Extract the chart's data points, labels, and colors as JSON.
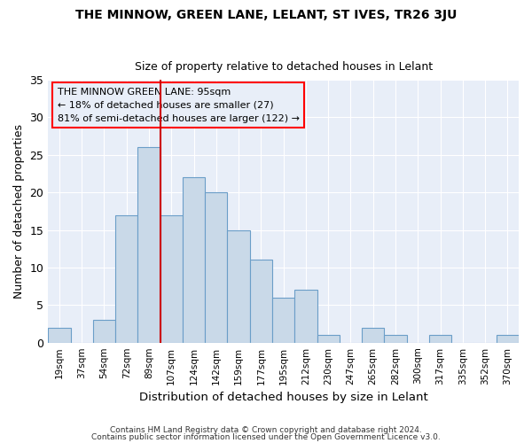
{
  "title1": "THE MINNOW, GREEN LANE, LELANT, ST IVES, TR26 3JU",
  "title2": "Size of property relative to detached houses in Lelant",
  "xlabel": "Distribution of detached houses by size in Lelant",
  "ylabel": "Number of detached properties",
  "footnote1": "Contains HM Land Registry data © Crown copyright and database right 2024.",
  "footnote2": "Contains public sector information licensed under the Open Government Licence v3.0.",
  "bar_labels": [
    "19sqm",
    "37sqm",
    "54sqm",
    "72sqm",
    "89sqm",
    "107sqm",
    "124sqm",
    "142sqm",
    "159sqm",
    "177sqm",
    "195sqm",
    "212sqm",
    "230sqm",
    "247sqm",
    "265sqm",
    "282sqm",
    "300sqm",
    "317sqm",
    "335sqm",
    "352sqm",
    "370sqm"
  ],
  "bar_values": [
    2,
    0,
    3,
    17,
    26,
    17,
    22,
    20,
    15,
    11,
    6,
    7,
    1,
    0,
    2,
    1,
    0,
    1,
    0,
    0,
    1
  ],
  "bar_color": "#c9d9e8",
  "bar_edgecolor": "#6b9ec8",
  "annotation_text": "THE MINNOW GREEN LANE: 95sqm\n← 18% of detached houses are smaller (27)\n81% of semi-detached houses are larger (122) →",
  "vline_x": 4.5,
  "vline_color": "#cc0000",
  "ylim": [
    0,
    35
  ],
  "yticks": [
    0,
    5,
    10,
    15,
    20,
    25,
    30,
    35
  ],
  "background_color": "#ffffff",
  "plot_bg_color": "#e8eef8",
  "grid_color": "#ffffff"
}
